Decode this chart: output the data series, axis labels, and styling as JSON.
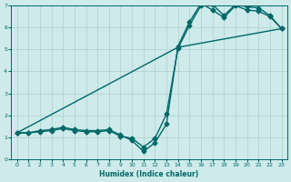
{
  "xlabel": "Humidex (Indice chaleur)",
  "xlim": [
    -0.5,
    23.5
  ],
  "ylim": [
    0,
    7
  ],
  "bg_color": "#ceeaea",
  "grid_color": "#aed0d0",
  "line_color": "#006868",
  "line1_x": [
    0,
    1,
    2,
    3,
    4,
    5,
    6,
    7,
    8,
    9,
    10,
    11,
    12,
    13,
    14,
    15,
    16,
    17,
    18,
    19,
    20,
    21,
    22,
    23
  ],
  "line1_y": [
    1.2,
    1.2,
    1.3,
    1.35,
    1.45,
    1.35,
    1.3,
    1.3,
    1.35,
    1.1,
    0.85,
    0.35,
    0.75,
    1.6,
    5.15,
    6.25,
    7.1,
    6.8,
    6.45,
    7.0,
    6.8,
    6.75,
    6.5,
    5.95
  ],
  "line2_x": [
    0,
    1,
    2,
    3,
    4,
    5,
    6,
    7,
    8,
    9,
    10,
    11,
    12,
    13,
    14,
    15,
    16,
    17,
    18,
    19,
    20,
    21,
    22,
    23
  ],
  "line2_y": [
    1.2,
    1.2,
    1.25,
    1.3,
    1.4,
    1.3,
    1.25,
    1.25,
    1.3,
    1.05,
    0.95,
    0.55,
    0.95,
    2.05,
    5.05,
    6.1,
    7.0,
    7.05,
    6.55,
    7.05,
    6.95,
    6.9,
    6.55,
    5.95
  ],
  "line3_x": [
    0,
    14,
    23
  ],
  "line3_y": [
    1.2,
    5.1,
    5.95
  ],
  "marker": "D",
  "markersize": 2.5,
  "linewidth": 1.0
}
